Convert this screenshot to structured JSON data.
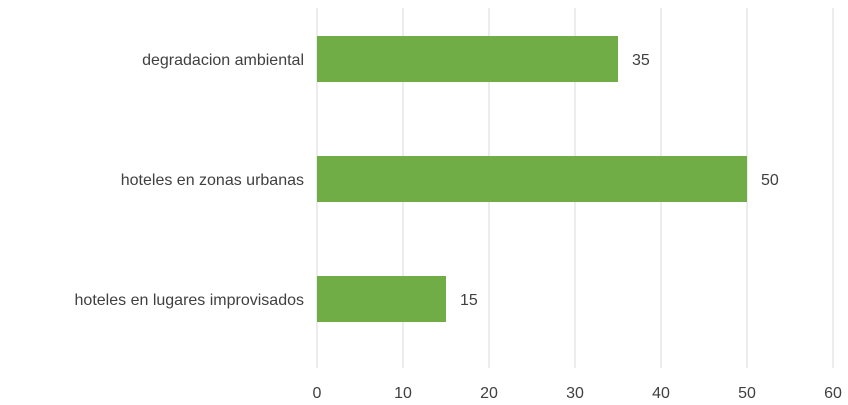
{
  "chart_data": {
    "type": "bar",
    "orientation": "horizontal",
    "categories": [
      "degradacion ambiental",
      "hoteles en zonas urbanas",
      "hoteles en lugares improvisados"
    ],
    "values": [
      35,
      50,
      15
    ],
    "data_labels": [
      "35",
      "50",
      "15"
    ],
    "title": "",
    "xlabel": "",
    "ylabel": "",
    "xlim": [
      0,
      60
    ],
    "x_ticks": [
      "0",
      "10",
      "20",
      "30",
      "40",
      "50",
      "60"
    ],
    "grid": "vertical",
    "legend": "none",
    "bar_color": "#70ad47"
  }
}
